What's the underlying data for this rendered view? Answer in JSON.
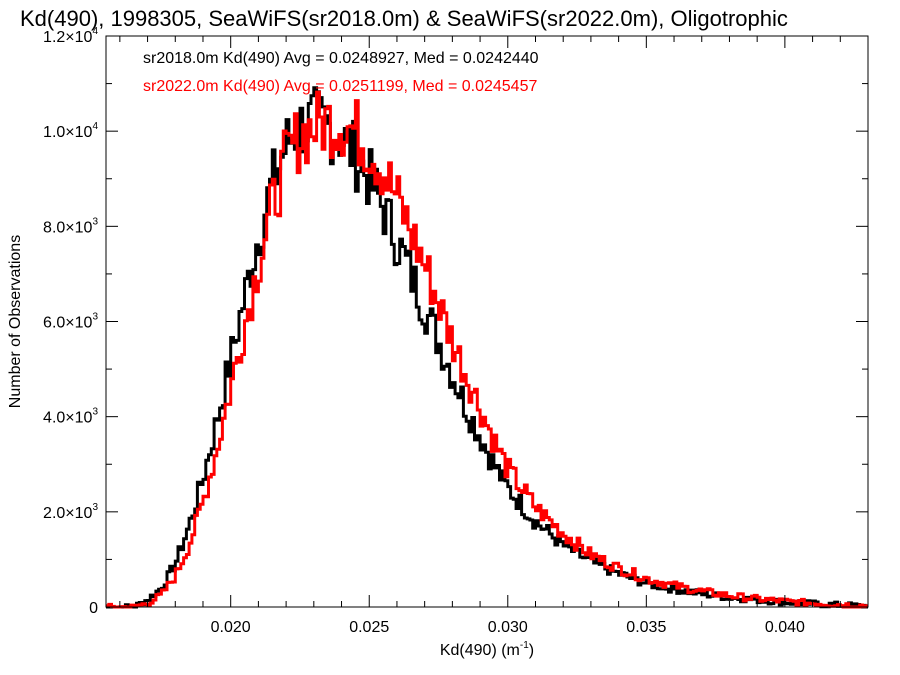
{
  "chart_data": {
    "type": "histogram",
    "title": "Kd(490), 1998305, SeaWiFS(sr2018.0m) & SeaWiFS(sr2022.0m), Oligotrophic",
    "xlabel": "Kd(490) (m",
    "xlabel_sup": "-1",
    "xlabel_suffix": ")",
    "ylabel": "Number of Observations",
    "xlim": [
      0.0155,
      0.043
    ],
    "ylim": [
      0,
      12000
    ],
    "x_ticks": [
      {
        "value": 0.02,
        "label": "0.020"
      },
      {
        "value": 0.025,
        "label": "0.025"
      },
      {
        "value": 0.03,
        "label": "0.030"
      },
      {
        "value": 0.035,
        "label": "0.035"
      },
      {
        "value": 0.04,
        "label": "0.040"
      }
    ],
    "y_ticks": [
      {
        "value": 0,
        "mant": "0",
        "exp": ""
      },
      {
        "value": 2000,
        "mant": "2.0×10",
        "exp": "3"
      },
      {
        "value": 4000,
        "mant": "4.0×10",
        "exp": "3"
      },
      {
        "value": 6000,
        "mant": "6.0×10",
        "exp": "3"
      },
      {
        "value": 8000,
        "mant": "8.0×10",
        "exp": "3"
      },
      {
        "value": 10000,
        "mant": "1.0×10",
        "exp": "4"
      },
      {
        "value": 12000,
        "mant": "1.2×10",
        "exp": "4"
      }
    ],
    "legend": [
      "sr2018.0m Kd(490) Avg = 0.0248927, Med = 0.0242440",
      "sr2022.0m Kd(490) Avg = 0.0251199, Med = 0.0245457"
    ],
    "legend_placement": "top-left",
    "grid": false,
    "series": [
      {
        "name": "sr2018.0m",
        "color": "#000000",
        "x": [
          0.0155,
          0.0165,
          0.017,
          0.0175,
          0.018,
          0.0185,
          0.019,
          0.0195,
          0.02,
          0.0205,
          0.021,
          0.0215,
          0.022,
          0.0225,
          0.023,
          0.0235,
          0.024,
          0.0245,
          0.025,
          0.0255,
          0.026,
          0.0265,
          0.027,
          0.0275,
          0.028,
          0.0285,
          0.029,
          0.0295,
          0.03,
          0.031,
          0.032,
          0.033,
          0.034,
          0.035,
          0.036,
          0.037,
          0.038,
          0.039,
          0.04,
          0.041,
          0.042,
          0.043
        ],
        "y": [
          0,
          0,
          150,
          400,
          900,
          1700,
          2700,
          3900,
          5200,
          6500,
          7800,
          8900,
          9700,
          10100,
          10200,
          10100,
          9900,
          9500,
          9000,
          8400,
          7700,
          7000,
          6300,
          5600,
          4900,
          4200,
          3600,
          3000,
          2500,
          1800,
          1300,
          950,
          700,
          500,
          380,
          280,
          200,
          150,
          100,
          70,
          40,
          20
        ]
      },
      {
        "name": "sr2022.0m",
        "color": "#ff0000",
        "x": [
          0.0155,
          0.0165,
          0.017,
          0.0175,
          0.018,
          0.0185,
          0.019,
          0.0195,
          0.02,
          0.0205,
          0.021,
          0.0215,
          0.022,
          0.0225,
          0.023,
          0.0235,
          0.024,
          0.0245,
          0.025,
          0.0255,
          0.026,
          0.0265,
          0.027,
          0.0275,
          0.028,
          0.0285,
          0.029,
          0.0295,
          0.03,
          0.031,
          0.032,
          0.033,
          0.034,
          0.035,
          0.036,
          0.037,
          0.038,
          0.039,
          0.04,
          0.041,
          0.042,
          0.043
        ],
        "y": [
          0,
          0,
          80,
          250,
          650,
          1300,
          2200,
          3300,
          4600,
          5900,
          7200,
          8400,
          9400,
          9900,
          10100,
          10200,
          10200,
          10000,
          9700,
          9200,
          8600,
          7900,
          7200,
          6400,
          5600,
          4900,
          4200,
          3500,
          2900,
          2100,
          1550,
          1100,
          820,
          600,
          450,
          330,
          240,
          170,
          120,
          80,
          50,
          25
        ]
      }
    ]
  }
}
